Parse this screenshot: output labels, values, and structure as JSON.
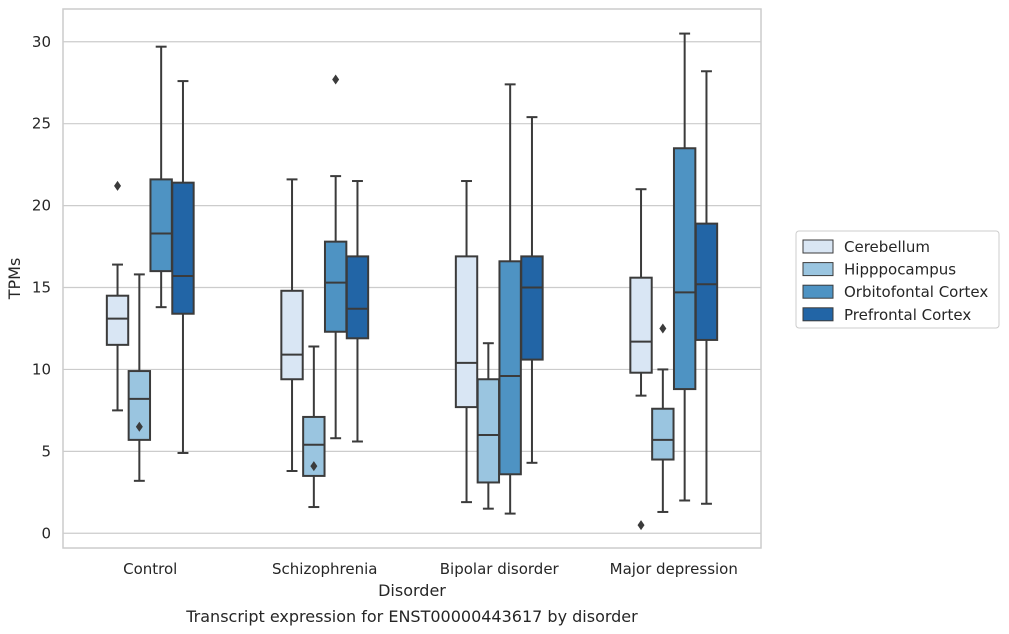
{
  "chart_data": {
    "type": "box",
    "caption": "Transcript expression for ENST00000443617 by disorder",
    "xlabel": "Disorder",
    "ylabel": "TPMs",
    "ylim": [
      -0.9,
      32
    ],
    "yticks": [
      0,
      5,
      10,
      15,
      20,
      25,
      30
    ],
    "grid": "horizontal",
    "legend_position": "right",
    "categories": [
      "Control",
      "Schizophrenia",
      "Bipolar disorder",
      "Major depression"
    ],
    "series": [
      {
        "name": "Cerebellum",
        "color": "#d9e6f4",
        "boxes": [
          {
            "whisker_low": 7.5,
            "q1": 11.5,
            "median": 13.1,
            "q3": 14.5,
            "whisker_high": 16.4,
            "outliers": [
              21.2
            ]
          },
          {
            "whisker_low": 3.8,
            "q1": 9.4,
            "median": 10.9,
            "q3": 14.8,
            "whisker_high": 21.6,
            "outliers": []
          },
          {
            "whisker_low": 1.9,
            "q1": 7.7,
            "median": 10.4,
            "q3": 16.9,
            "whisker_high": 21.5,
            "outliers": []
          },
          {
            "whisker_low": 8.4,
            "q1": 9.8,
            "median": 11.7,
            "q3": 15.6,
            "whisker_high": 21.0,
            "outliers": [
              0.5
            ]
          }
        ]
      },
      {
        "name": "Hipppocampus",
        "color": "#9ac5e0",
        "boxes": [
          {
            "whisker_low": 3.2,
            "q1": 5.7,
            "median": 8.2,
            "q3": 9.9,
            "whisker_high": 15.8,
            "outliers": [
              6.5
            ]
          },
          {
            "whisker_low": 1.6,
            "q1": 3.5,
            "median": 5.4,
            "q3": 7.1,
            "whisker_high": 11.4,
            "outliers": [
              4.1
            ]
          },
          {
            "whisker_low": 1.5,
            "q1": 3.1,
            "median": 6.0,
            "q3": 9.4,
            "whisker_high": 11.6,
            "outliers": []
          },
          {
            "whisker_low": 1.3,
            "q1": 4.5,
            "median": 5.7,
            "q3": 7.6,
            "whisker_high": 10.0,
            "outliers": [
              12.5
            ]
          }
        ]
      },
      {
        "name": "Orbitofontal Cortex",
        "color": "#4e93c3",
        "boxes": [
          {
            "whisker_low": 13.8,
            "q1": 16.0,
            "median": 18.3,
            "q3": 21.6,
            "whisker_high": 29.7,
            "outliers": []
          },
          {
            "whisker_low": 5.8,
            "q1": 12.3,
            "median": 15.3,
            "q3": 17.8,
            "whisker_high": 21.8,
            "outliers": [
              27.7
            ]
          },
          {
            "whisker_low": 1.2,
            "q1": 3.6,
            "median": 9.6,
            "q3": 16.6,
            "whisker_high": 27.4,
            "outliers": []
          },
          {
            "whisker_low": 2.0,
            "q1": 8.8,
            "median": 14.7,
            "q3": 23.5,
            "whisker_high": 30.5,
            "outliers": []
          }
        ]
      },
      {
        "name": "Prefrontal Cortex",
        "color": "#2265a6",
        "boxes": [
          {
            "whisker_low": 4.9,
            "q1": 13.4,
            "median": 15.7,
            "q3": 21.4,
            "whisker_high": 27.6,
            "outliers": []
          },
          {
            "whisker_low": 5.6,
            "q1": 11.9,
            "median": 13.7,
            "q3": 16.9,
            "whisker_high": 21.5,
            "outliers": []
          },
          {
            "whisker_low": 4.3,
            "q1": 10.6,
            "median": 15.0,
            "q3": 16.9,
            "whisker_high": 25.4,
            "outliers": []
          },
          {
            "whisker_low": 1.8,
            "q1": 11.8,
            "median": 15.2,
            "q3": 18.9,
            "whisker_high": 28.2,
            "outliers": []
          }
        ]
      }
    ]
  }
}
